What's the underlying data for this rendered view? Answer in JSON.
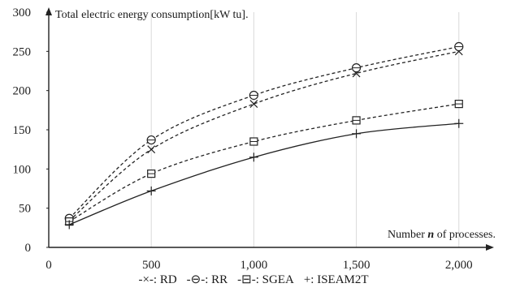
{
  "chart_data": {
    "type": "line",
    "title": "",
    "ylabel": "Total electric energy consumption[kW tu].",
    "xlabel_pre": "Number ",
    "xlabel_var": "n",
    "xlabel_post": " of processes.",
    "x": [
      100,
      500,
      1000,
      1500,
      2000
    ],
    "xlim": [
      0,
      2100
    ],
    "ylim": [
      0,
      300
    ],
    "xticks": [
      0,
      500,
      1000,
      1500,
      2000
    ],
    "xtick_labels": [
      "0",
      "500",
      "1,000",
      "1,500",
      "2,000"
    ],
    "yticks": [
      0,
      50,
      100,
      150,
      200,
      250,
      300
    ],
    "ytick_labels": [
      "0",
      "50",
      "100",
      "150",
      "200",
      "250",
      "300"
    ],
    "grid": "vertical",
    "legend_position": "bottom",
    "series": [
      {
        "name": "RD",
        "legend_label": "-×-: RD",
        "marker": "x",
        "style": "dashed",
        "values": [
          34,
          125,
          183,
          222,
          250
        ]
      },
      {
        "name": "RR",
        "legend_label": "-⊖-: RR",
        "marker": "circle",
        "style": "dashed",
        "values": [
          37,
          137,
          194,
          229,
          256
        ]
      },
      {
        "name": "SGEA",
        "legend_label": "-⊟-: SGEA",
        "marker": "square",
        "style": "dashed",
        "values": [
          33,
          94,
          135,
          162,
          183
        ]
      },
      {
        "name": "ISEAM2T",
        "legend_label": "+: ISEAM2T",
        "marker": "plus",
        "style": "solid",
        "values": [
          29,
          72,
          115,
          145,
          158
        ]
      }
    ]
  }
}
